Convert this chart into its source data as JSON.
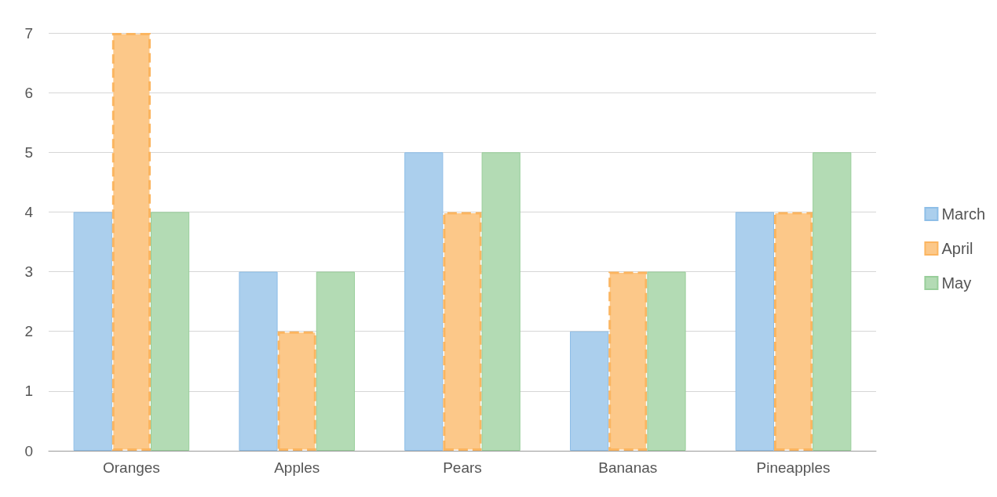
{
  "chart_data": {
    "type": "bar",
    "categories": [
      "Oranges",
      "Apples",
      "Pears",
      "Bananas",
      "Pineapples"
    ],
    "series": [
      {
        "name": "March",
        "color": "#abcfed",
        "values": [
          4,
          3,
          5,
          2,
          4
        ]
      },
      {
        "name": "April",
        "color": "#fcc889",
        "values": [
          7,
          2,
          4,
          3,
          4
        ],
        "line_style": "dashed"
      },
      {
        "name": "May",
        "color": "#b3dbb4",
        "values": [
          4,
          3,
          5,
          3,
          5
        ]
      }
    ],
    "ylim": [
      0,
      7
    ],
    "yticks": [
      0,
      1,
      2,
      3,
      4,
      5,
      6,
      7
    ],
    "grid": "y",
    "legend": "right"
  }
}
